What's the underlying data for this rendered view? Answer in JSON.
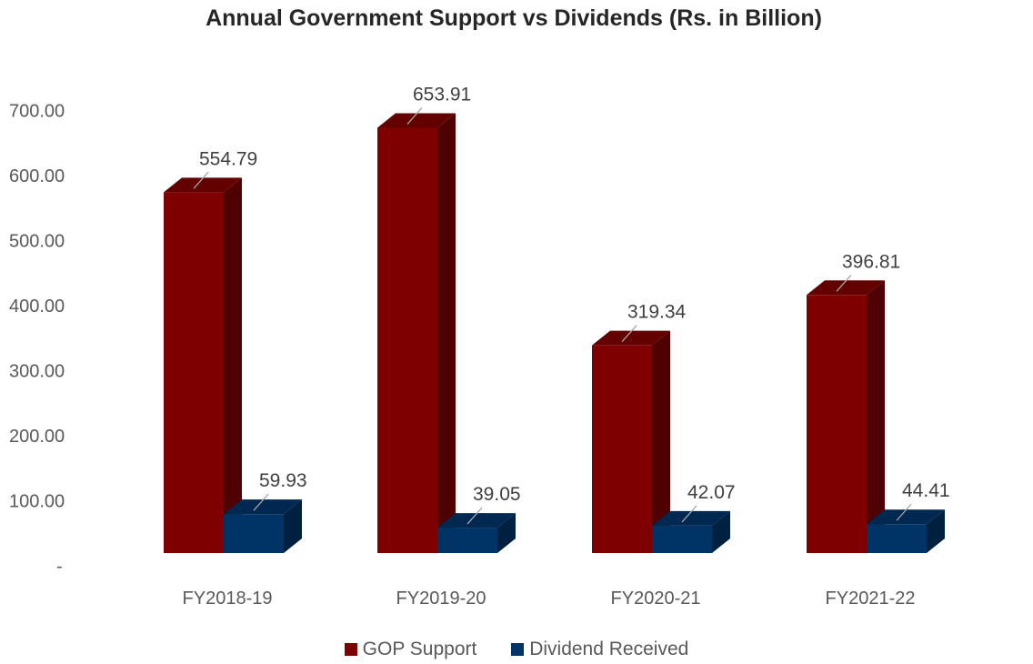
{
  "chart_data": {
    "type": "bar",
    "title": "Annual Government Support vs Dividends (Rs. in Billion)",
    "categories": [
      "FY2018-19",
      "FY2019-20",
      "FY2020-21",
      "FY2021-22"
    ],
    "series": [
      {
        "name": "GOP Support",
        "values": [
          554.79,
          653.91,
          319.34,
          396.81
        ],
        "labels": [
          "554.79",
          "653.91",
          "319.34",
          "396.81"
        ],
        "color": "#7f0000"
      },
      {
        "name": "Dividend Received",
        "values": [
          59.93,
          39.05,
          42.07,
          44.41
        ],
        "labels": [
          "59.93",
          "39.05",
          "42.07",
          "44.41"
        ],
        "color": "#003366"
      }
    ],
    "yticks": [
      "-",
      "100.00",
      "200.00",
      "300.00",
      "400.00",
      "500.00",
      "600.00",
      "700.00"
    ],
    "ylim": [
      0,
      700
    ],
    "grid": false,
    "legend": "bottom"
  }
}
